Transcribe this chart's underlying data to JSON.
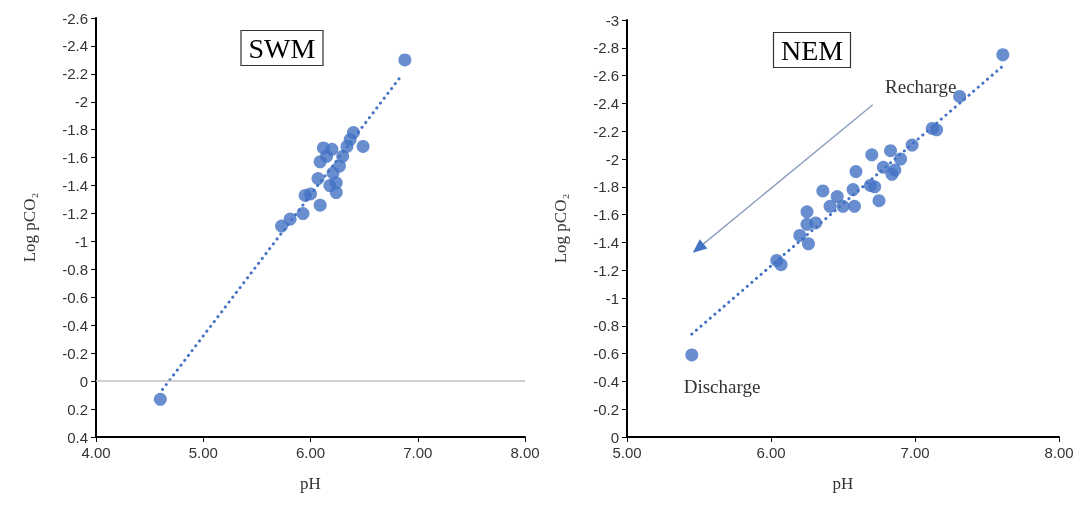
{
  "chart_data": [
    {
      "type": "scatter",
      "title": "SWM",
      "xlabel": "pH",
      "ylabel": "Log pCO₂",
      "marker": "circle",
      "xlim": [
        4,
        8
      ],
      "xticks": [
        {
          "value": 4,
          "label": "4.00"
        },
        {
          "value": 5,
          "label": "5.00"
        },
        {
          "value": 6,
          "label": "6.00"
        },
        {
          "value": 7,
          "label": "7.00"
        },
        {
          "value": 8,
          "label": "8.00"
        }
      ],
      "ylim": [
        0.4,
        -2.6
      ],
      "yticks": [
        0.4,
        0.2,
        0,
        -0.2,
        -0.4,
        -0.6,
        -0.8,
        -1,
        -1.2,
        -1.4,
        -1.6,
        -1.8,
        -2,
        -2.2,
        -2.4,
        -2.6
      ],
      "ref_lines": [
        {
          "axis": "y",
          "value": 0,
          "color": "#bfbfbf"
        }
      ],
      "series": [
        {
          "type": "scatter",
          "color": "#4472c4",
          "x": [
            6.88,
            4.6,
            5.73,
            5.81,
            5.93,
            6.09,
            5.95,
            6.0,
            6.07,
            6.09,
            6.12,
            6.18,
            6.21,
            6.24,
            6.27,
            6.3,
            6.34,
            6.37,
            6.4,
            6.49,
            6.15,
            6.2,
            6.24
          ],
          "values": [
            -2.3,
            0.13,
            -1.11,
            -1.16,
            -1.2,
            -1.26,
            -1.33,
            -1.34,
            -1.45,
            -1.57,
            -1.67,
            -1.4,
            -1.49,
            -1.42,
            -1.54,
            -1.61,
            -1.68,
            -1.73,
            -1.78,
            -1.68,
            -1.61,
            -1.66,
            -1.35
          ]
        },
        {
          "type": "line",
          "color": "#4472c4",
          "marker": "none",
          "line_style": "dotted",
          "x": [
            4.62,
            6.85
          ],
          "values": [
            0.06,
            -2.19
          ]
        }
      ]
    },
    {
      "type": "scatter",
      "title": "NEM",
      "xlabel": "pH",
      "ylabel": "Log pCO₂",
      "marker": "circle",
      "xlim": [
        5,
        8
      ],
      "xticks": [
        {
          "value": 5,
          "label": "5.00"
        },
        {
          "value": 6,
          "label": "6.00"
        },
        {
          "value": 7,
          "label": "7.00"
        },
        {
          "value": 8,
          "label": "8.00"
        }
      ],
      "ylim": [
        0,
        -3
      ],
      "yticks": [
        0,
        -0.2,
        -0.4,
        -0.6,
        -0.8,
        -1,
        -1.2,
        -1.4,
        -1.6,
        -1.8,
        -2,
        -2.2,
        -2.4,
        -2.6,
        -2.8,
        -3
      ],
      "annotations": [
        "Recharge",
        "Discharge"
      ],
      "series": [
        {
          "type": "scatter",
          "color": "#4472c4",
          "x": [
            7.61,
            7.31,
            7.12,
            7.15,
            6.98,
            6.9,
            6.83,
            6.7,
            6.78,
            6.84,
            6.86,
            6.59,
            6.69,
            6.72,
            6.75,
            6.57,
            6.58,
            6.46,
            6.5,
            6.41,
            6.36,
            6.25,
            6.31,
            6.25,
            6.2,
            6.26,
            6.04,
            6.07,
            5.45
          ],
          "values": [
            -2.75,
            -2.45,
            -2.22,
            -2.21,
            -2.1,
            -2.0,
            -2.06,
            -2.03,
            -1.94,
            -1.89,
            -1.92,
            -1.91,
            -1.81,
            -1.8,
            -1.7,
            -1.78,
            -1.66,
            -1.73,
            -1.66,
            -1.66,
            -1.77,
            -1.62,
            -1.54,
            -1.53,
            -1.45,
            -1.39,
            -1.27,
            -1.24,
            -0.59
          ]
        },
        {
          "type": "line",
          "color": "#4472c4",
          "marker": "none",
          "line_style": "dotted",
          "x": [
            5.45,
            7.6
          ],
          "values": [
            -0.74,
            -2.66
          ]
        }
      ]
    }
  ]
}
